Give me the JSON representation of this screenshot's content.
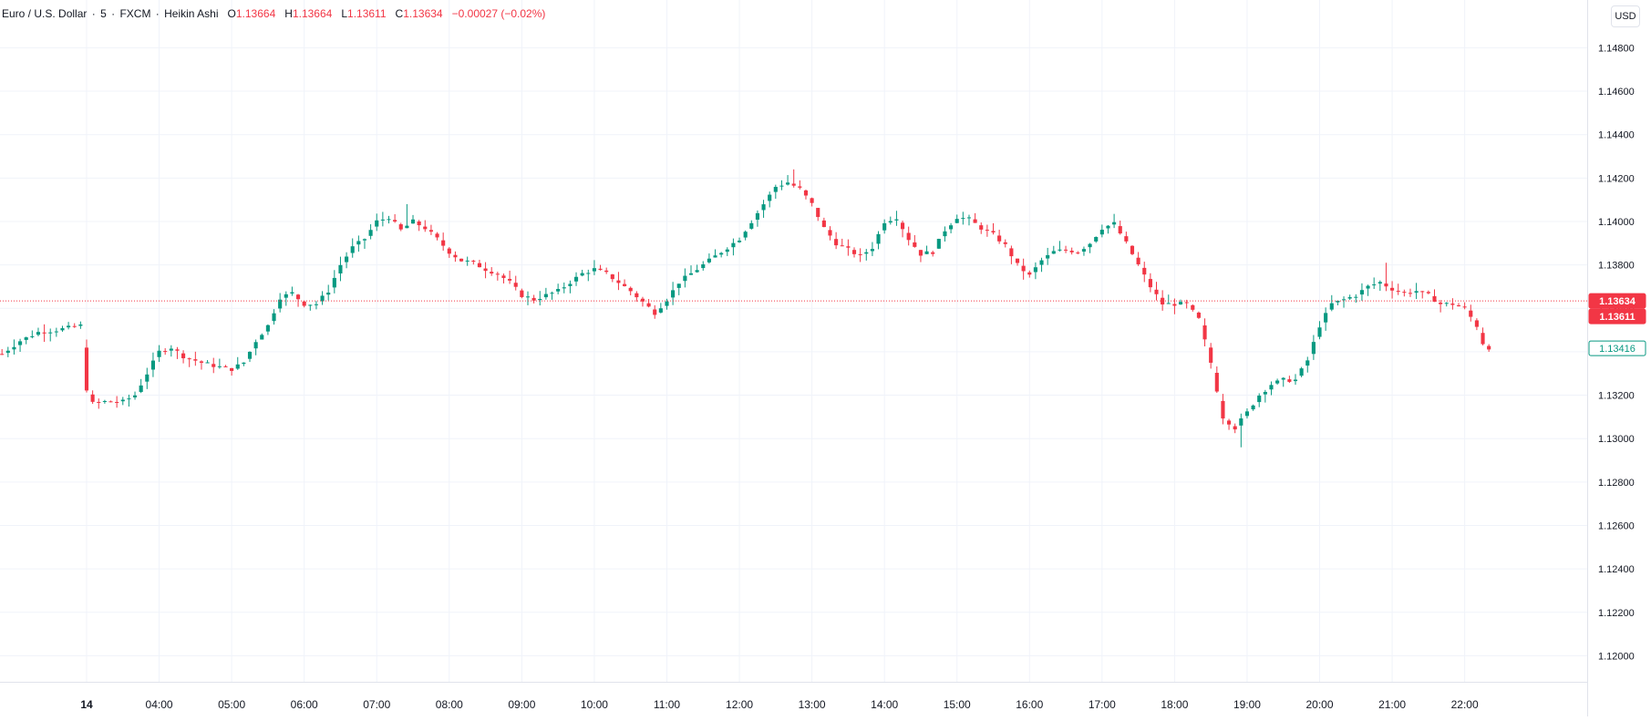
{
  "legend": {
    "symbol": "Euro / U.S. Dollar",
    "interval": "5",
    "exchange": "FXCM",
    "chart_style": "Heikin Ashi",
    "open_label": "O",
    "open": "1.13664",
    "high_label": "H",
    "high": "1.13664",
    "low_label": "L",
    "low": "1.13611",
    "close_label": "C",
    "close": "1.13634",
    "change": "−0.00027 (−0.02%)"
  },
  "currency_button": "USD",
  "price_badges": [
    {
      "label": "1.13634",
      "value": 1.13634,
      "style": "filled",
      "color": "#f23645"
    },
    {
      "label": "1.13611",
      "value": 1.13611,
      "style": "filled",
      "color": "#f23645"
    },
    {
      "label": "1.13416",
      "value": 1.13416,
      "style": "outline",
      "color": "#089981"
    }
  ],
  "colors": {
    "up": "#089981",
    "down": "#f23645",
    "grid": "#f0f3fa",
    "text": "#131722",
    "price_line": "#f23645"
  },
  "chart_data": {
    "type": "candlestick",
    "title": "",
    "ylim": [
      1.1188,
      1.1502
    ],
    "grid": true,
    "y_tick_labels": [
      "1.14800",
      "1.14600",
      "1.14400",
      "1.14200",
      "1.14000",
      "1.13800",
      "1.13600",
      "1.13400",
      "1.13200",
      "1.13000",
      "1.12800",
      "1.12600",
      "1.12400",
      "1.12200",
      "1.12000"
    ],
    "x_tick_labels": [
      {
        "label": "14",
        "minute": 0,
        "bold": true
      },
      {
        "label": "04:00",
        "minute": 60
      },
      {
        "label": "05:00",
        "minute": 120
      },
      {
        "label": "06:00",
        "minute": 180
      },
      {
        "label": "07:00",
        "minute": 240
      },
      {
        "label": "08:00",
        "minute": 300
      },
      {
        "label": "09:00",
        "minute": 360
      },
      {
        "label": "10:00",
        "minute": 420
      },
      {
        "label": "11:00",
        "minute": 480
      },
      {
        "label": "12:00",
        "minute": 540
      },
      {
        "label": "13:00",
        "minute": 600
      },
      {
        "label": "14:00",
        "minute": 660
      },
      {
        "label": "15:00",
        "minute": 720
      },
      {
        "label": "16:00",
        "minute": 780
      },
      {
        "label": "17:00",
        "minute": 840
      },
      {
        "label": "18:00",
        "minute": 900
      },
      {
        "label": "19:00",
        "minute": 960
      },
      {
        "label": "20:00",
        "minute": 1020
      },
      {
        "label": "21:00",
        "minute": 1080
      },
      {
        "label": "22:00",
        "minute": 1140
      }
    ],
    "current_price": 1.13634,
    "bar_interval_minutes": 5,
    "path_points_minute_close": [
      [
        -70,
        1.1339
      ],
      [
        -55,
        1.1345
      ],
      [
        -40,
        1.1349
      ],
      [
        -25,
        1.135
      ],
      [
        -5,
        1.1352
      ],
      [
        0,
        1.1323
      ],
      [
        3,
        1.1316
      ],
      [
        15,
        1.1317
      ],
      [
        30,
        1.1317
      ],
      [
        40,
        1.132
      ],
      [
        50,
        1.133
      ],
      [
        60,
        1.134
      ],
      [
        70,
        1.1342
      ],
      [
        80,
        1.1338
      ],
      [
        95,
        1.1335
      ],
      [
        110,
        1.1333
      ],
      [
        120,
        1.1332
      ],
      [
        130,
        1.1335
      ],
      [
        140,
        1.1345
      ],
      [
        150,
        1.1352
      ],
      [
        160,
        1.1365
      ],
      [
        170,
        1.1367
      ],
      [
        180,
        1.1362
      ],
      [
        190,
        1.1362
      ],
      [
        200,
        1.1368
      ],
      [
        210,
        1.138
      ],
      [
        220,
        1.1388
      ],
      [
        230,
        1.1392
      ],
      [
        240,
        1.14
      ],
      [
        250,
        1.1402
      ],
      [
        260,
        1.1396
      ],
      [
        270,
        1.14
      ],
      [
        280,
        1.1397
      ],
      [
        290,
        1.1392
      ],
      [
        300,
        1.1386
      ],
      [
        310,
        1.1382
      ],
      [
        320,
        1.1381
      ],
      [
        330,
        1.1378
      ],
      [
        340,
        1.1376
      ],
      [
        350,
        1.1372
      ],
      [
        360,
        1.1366
      ],
      [
        370,
        1.1364
      ],
      [
        380,
        1.1366
      ],
      [
        390,
        1.1368
      ],
      [
        400,
        1.1372
      ],
      [
        410,
        1.1376
      ],
      [
        420,
        1.1378
      ],
      [
        430,
        1.1376
      ],
      [
        440,
        1.1372
      ],
      [
        450,
        1.1368
      ],
      [
        460,
        1.1363
      ],
      [
        470,
        1.1358
      ],
      [
        480,
        1.1364
      ],
      [
        490,
        1.1372
      ],
      [
        500,
        1.1376
      ],
      [
        510,
        1.138
      ],
      [
        520,
        1.1384
      ],
      [
        530,
        1.1388
      ],
      [
        540,
        1.1392
      ],
      [
        550,
        1.14
      ],
      [
        560,
        1.1408
      ],
      [
        570,
        1.1416
      ],
      [
        580,
        1.1418
      ],
      [
        590,
        1.1415
      ],
      [
        600,
        1.1408
      ],
      [
        610,
        1.1397
      ],
      [
        620,
        1.139
      ],
      [
        630,
        1.1387
      ],
      [
        640,
        1.1384
      ],
      [
        650,
        1.1388
      ],
      [
        660,
        1.14
      ],
      [
        670,
        1.1402
      ],
      [
        680,
        1.1392
      ],
      [
        690,
        1.1385
      ],
      [
        700,
        1.1386
      ],
      [
        710,
        1.1396
      ],
      [
        720,
        1.1402
      ],
      [
        730,
        1.1401
      ],
      [
        740,
        1.1397
      ],
      [
        750,
        1.1394
      ],
      [
        760,
        1.1389
      ],
      [
        770,
        1.138
      ],
      [
        780,
        1.1375
      ],
      [
        790,
        1.1382
      ],
      [
        800,
        1.1386
      ],
      [
        810,
        1.1387
      ],
      [
        820,
        1.1386
      ],
      [
        830,
        1.139
      ],
      [
        840,
        1.1397
      ],
      [
        850,
        1.1399
      ],
      [
        860,
        1.139
      ],
      [
        870,
        1.138
      ],
      [
        880,
        1.137
      ],
      [
        890,
        1.1362
      ],
      [
        900,
        1.1362
      ],
      [
        910,
        1.1362
      ],
      [
        920,
        1.1355
      ],
      [
        930,
        1.1335
      ],
      [
        940,
        1.131
      ],
      [
        950,
        1.1305
      ],
      [
        960,
        1.1312
      ],
      [
        970,
        1.132
      ],
      [
        980,
        1.1325
      ],
      [
        990,
        1.1327
      ],
      [
        1000,
        1.1327
      ],
      [
        1010,
        1.1336
      ],
      [
        1020,
        1.1352
      ],
      [
        1030,
        1.1362
      ],
      [
        1040,
        1.1364
      ],
      [
        1050,
        1.1366
      ],
      [
        1060,
        1.137
      ],
      [
        1070,
        1.1372
      ],
      [
        1080,
        1.1369
      ],
      [
        1090,
        1.1367
      ],
      [
        1100,
        1.1368
      ],
      [
        1110,
        1.1366
      ],
      [
        1120,
        1.1362
      ],
      [
        1130,
        1.1362
      ],
      [
        1140,
        1.136
      ],
      [
        1150,
        1.1352
      ],
      [
        1155,
        1.1344
      ],
      [
        1160,
        1.1342
      ]
    ],
    "marked_extremes": [
      {
        "minute": 265,
        "high": 1.1408
      },
      {
        "minute": 585,
        "high": 1.1424
      },
      {
        "minute": 955,
        "low": 1.1296
      },
      {
        "minute": 1075,
        "high": 1.1381
      }
    ]
  }
}
